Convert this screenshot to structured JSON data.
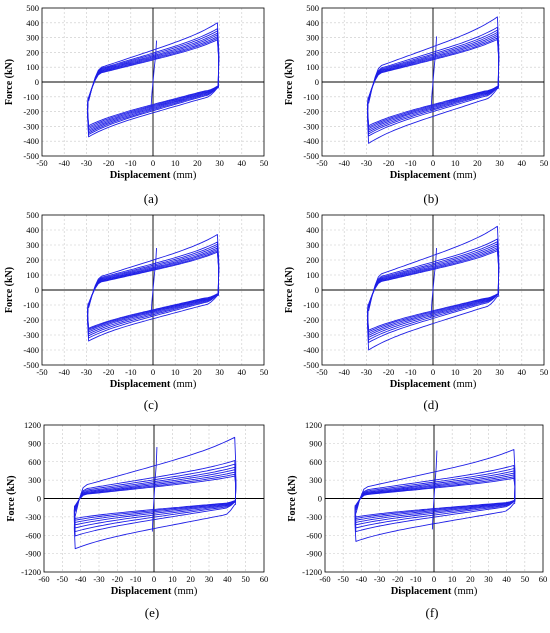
{
  "chart_data": [
    {
      "type": "line",
      "caption": "(a)",
      "ylabel": "Force (kN)",
      "xlabel_bold": "Displacement",
      "xlabel_unit": "(mm)",
      "xlim": [
        -50,
        50
      ],
      "ylim": [
        -500,
        500
      ],
      "xticks": [
        -50,
        -40,
        -30,
        -20,
        -10,
        0,
        10,
        20,
        30,
        40,
        50
      ],
      "yticks": [
        -500,
        -400,
        -300,
        -200,
        -100,
        0,
        100,
        200,
        300,
        400,
        500
      ],
      "grid": true,
      "series_color": "#1f1fe6",
      "loops": {
        "x_max": 29,
        "x_min": -29,
        "pos_peaks": [
          400,
          360,
          345,
          330,
          318,
          306,
          295,
          285
        ],
        "neg_peaks": [
          -370,
          -355,
          -345,
          -335,
          -325,
          -315,
          -305,
          -295
        ],
        "first_cycle_elastic_peak": 100
      }
    },
    {
      "type": "line",
      "caption": "(b)",
      "ylabel": "Force (kN)",
      "xlabel_bold": "Displacement",
      "xlabel_unit": "(mm)",
      "xlim": [
        -50,
        50
      ],
      "ylim": [
        -500,
        500
      ],
      "xticks": [
        -50,
        -40,
        -30,
        -20,
        -10,
        0,
        10,
        20,
        30,
        40,
        50
      ],
      "yticks": [
        -500,
        -400,
        -300,
        -200,
        -100,
        0,
        100,
        200,
        300,
        400,
        500
      ],
      "grid": true,
      "series_color": "#1f1fe6",
      "loops": {
        "x_max": 29,
        "x_min": -29,
        "pos_peaks": [
          440,
          370,
          350,
          335,
          322,
          310,
          298,
          288
        ],
        "neg_peaks": [
          -415,
          -365,
          -350,
          -338,
          -326,
          -315,
          -305,
          -295
        ],
        "first_cycle_elastic_peak": 110
      }
    },
    {
      "type": "line",
      "caption": "(c)",
      "ylabel": "Force (kN)",
      "xlabel_bold": "Displacement",
      "xlabel_unit": "(mm)",
      "xlim": [
        -50,
        50
      ],
      "ylim": [
        -500,
        500
      ],
      "xticks": [
        -50,
        -40,
        -30,
        -20,
        -10,
        0,
        10,
        20,
        30,
        40,
        50
      ],
      "yticks": [
        -500,
        -400,
        -300,
        -200,
        -100,
        0,
        100,
        200,
        300,
        400,
        500
      ],
      "grid": true,
      "series_color": "#1f1fe6",
      "loops": {
        "x_max": 29,
        "x_min": -29,
        "pos_peaks": [
          370,
          320,
          305,
          292,
          280,
          270,
          260,
          252
        ],
        "neg_peaks": [
          -340,
          -320,
          -305,
          -292,
          -280,
          -270,
          -262,
          -255
        ],
        "first_cycle_elastic_peak": 100
      }
    },
    {
      "type": "line",
      "caption": "(d)",
      "ylabel": "Force (kN)",
      "xlabel_bold": "Displacement",
      "xlabel_unit": "(mm)",
      "xlim": [
        -50,
        50
      ],
      "ylim": [
        -500,
        500
      ],
      "xticks": [
        -50,
        -40,
        -30,
        -20,
        -10,
        0,
        10,
        20,
        30,
        40,
        50
      ],
      "yticks": [
        -500,
        -400,
        -300,
        -200,
        -100,
        0,
        100,
        200,
        300,
        400,
        500
      ],
      "grid": true,
      "series_color": "#1f1fe6",
      "loops": {
        "x_max": 29,
        "x_min": -29,
        "pos_peaks": [
          425,
          340,
          322,
          308,
          295,
          283,
          272,
          262
        ],
        "neg_peaks": [
          -400,
          -350,
          -332,
          -316,
          -302,
          -290,
          -278,
          -268
        ],
        "first_cycle_elastic_peak": 100
      }
    },
    {
      "type": "line",
      "caption": "(e)",
      "ylabel": "Force (kN)",
      "xlabel_bold": "Displacement",
      "xlabel_unit": "(mm)",
      "xlim": [
        -60,
        60
      ],
      "ylim": [
        -1200,
        1200
      ],
      "xticks": [
        -60,
        -50,
        -40,
        -30,
        -20,
        -10,
        0,
        10,
        20,
        30,
        40,
        50,
        60
      ],
      "yticks": [
        -1200,
        -900,
        -600,
        -300,
        0,
        300,
        600,
        900,
        1200
      ],
      "grid": true,
      "series_color": "#1f1fe6",
      "loops": {
        "x_max": 44,
        "x_min": -43,
        "pos_peaks": [
          1000,
          620,
          560,
          510,
          470,
          430,
          395,
          365
        ],
        "neg_peaks": [
          -820,
          -610,
          -540,
          -480,
          -430,
          -390,
          -355,
          -325
        ],
        "first_cycle_elastic_peak": 300
      }
    },
    {
      "type": "line",
      "caption": "(f)",
      "ylabel": "Force (kN)",
      "xlabel_bold": "Displacement",
      "xlabel_unit": "(mm)",
      "xlim": [
        -60,
        60
      ],
      "ylim": [
        -1200,
        1200
      ],
      "xticks": [
        -60,
        -50,
        -40,
        -30,
        -20,
        -10,
        0,
        10,
        20,
        30,
        40,
        50,
        60
      ],
      "yticks": [
        -1200,
        -900,
        -600,
        -300,
        0,
        300,
        600,
        900,
        1200
      ],
      "grid": true,
      "series_color": "#1f1fe6",
      "loops": {
        "x_max": 44,
        "x_min": -43,
        "pos_peaks": [
          800,
          540,
          490,
          450,
          415,
          385,
          355,
          330
        ],
        "neg_peaks": [
          -700,
          -540,
          -480,
          -430,
          -390,
          -355,
          -325,
          -300
        ],
        "first_cycle_elastic_peak": 280
      }
    }
  ]
}
